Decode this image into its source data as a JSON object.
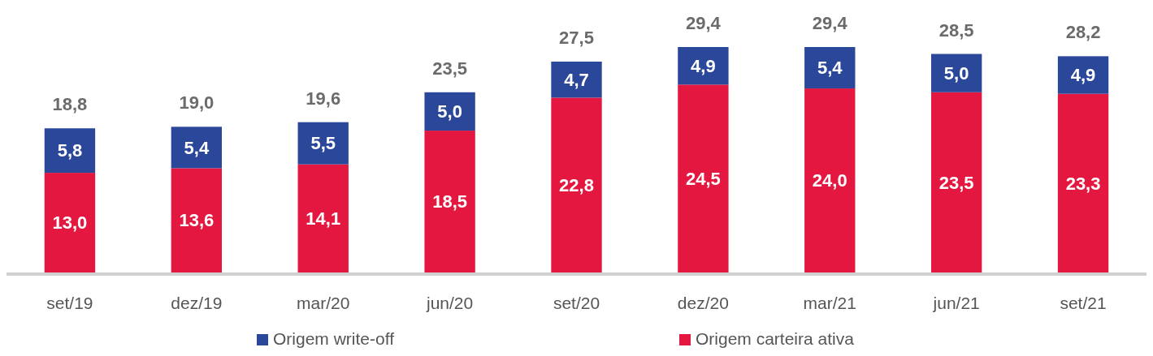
{
  "chart_data": {
    "type": "bar",
    "stacked": true,
    "legend": "bottom",
    "categories": [
      "set/19",
      "dez/19",
      "mar/20",
      "jun/20",
      "set/20",
      "dez/20",
      "mar/21",
      "jun/21",
      "set/21"
    ],
    "series": [
      {
        "name": "Origem carteira ativa",
        "color": "#e3173f",
        "values": [
          13.0,
          13.6,
          14.1,
          18.5,
          22.8,
          24.5,
          24.0,
          23.5,
          23.3
        ],
        "value_labels": [
          "13,0",
          "13,6",
          "14,1",
          "18,5",
          "22,8",
          "24,5",
          "24,0",
          "23,5",
          "23,3"
        ]
      },
      {
        "name": "Origem write-off",
        "color": "#2b479a",
        "values": [
          5.8,
          5.4,
          5.5,
          5.0,
          4.7,
          4.9,
          5.4,
          5.0,
          4.9
        ],
        "value_labels": [
          "5,8",
          "5,4",
          "5,5",
          "5,0",
          "4,7",
          "4,9",
          "5,4",
          "5,0",
          "4,9"
        ]
      }
    ],
    "totals": [
      "18,8",
      "19,0",
      "19,6",
      "23,5",
      "27,5",
      "29,4",
      "29,4",
      "28,5",
      "28,2"
    ]
  }
}
